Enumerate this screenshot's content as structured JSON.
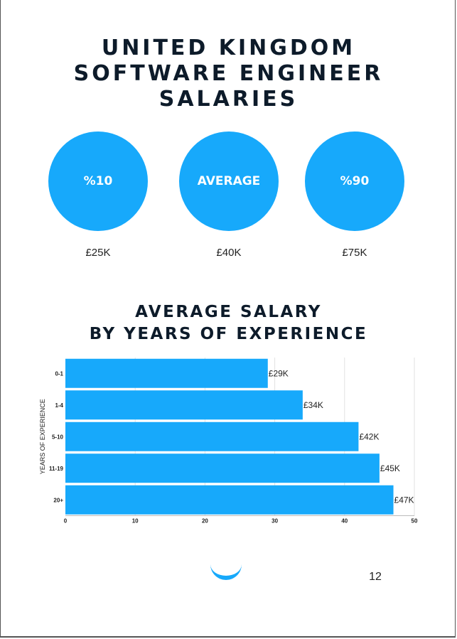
{
  "title_lines": [
    "UNITED KINGDOM",
    "SOFTWARE ENGINEER",
    "SALARIES"
  ],
  "percentiles": [
    {
      "label": "%10",
      "value": "£25K"
    },
    {
      "label": "AVERAGE",
      "value": "£40K"
    },
    {
      "label": "%90",
      "value": "£75K"
    }
  ],
  "colors": {
    "accent": "#17a9fb",
    "title": "#0d1b2a"
  },
  "chart_data": {
    "type": "bar",
    "orientation": "horizontal",
    "title_lines": [
      "AVERAGE SALARY",
      "BY YEARS OF EXPERIENCE"
    ],
    "categories": [
      "0-1",
      "1-4",
      "5-10",
      "11-19",
      "20+"
    ],
    "values": [
      29,
      34,
      42,
      45,
      47
    ],
    "data_labels": [
      "£29K",
      "£34K",
      "£42K",
      "£45K",
      "£47K"
    ],
    "xlim": [
      0,
      50
    ],
    "xticks": [
      0,
      10,
      20,
      30,
      40,
      50
    ],
    "ylabel": "YEARS OF EXPERIENCE",
    "xlabel": "",
    "grid": true,
    "legend": "none"
  },
  "footer": {
    "page_number": "12",
    "smile_icon": "smile-icon"
  }
}
